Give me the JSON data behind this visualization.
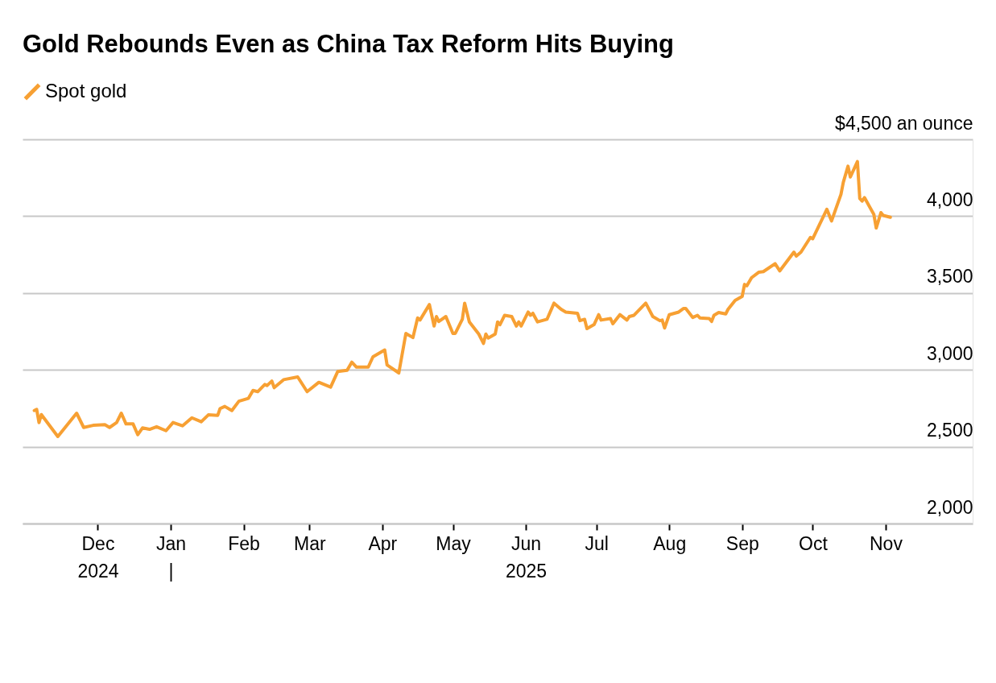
{
  "chart_data": {
    "type": "line",
    "title": "Gold Rebounds Even as China Tax Reform Hits Buying",
    "legend": "top left",
    "grid": "y",
    "marker": "none",
    "line_style": "solid",
    "xlim": [
      "2024-10-30",
      "2025-12-08"
    ],
    "xticks": [
      {
        "value": "2024-12-01",
        "label": "Dec\n2024"
      },
      {
        "value": "2025-01-01",
        "label": "Jan\n|"
      },
      {
        "value": "2025-02-01",
        "label": "Feb"
      },
      {
        "value": "2025-03-01",
        "label": "Mar"
      },
      {
        "value": "2025-04-01",
        "label": "Apr"
      },
      {
        "value": "2025-05-01",
        "label": "May"
      },
      {
        "value": "2025-06-01",
        "label": "Jun\n2025"
      },
      {
        "value": "2025-07-01",
        "label": "Jul"
      },
      {
        "value": "2025-08-01",
        "label": "Aug"
      },
      {
        "value": "2025-09-01",
        "label": "Sep"
      },
      {
        "value": "2025-10-01",
        "label": "Oct"
      },
      {
        "value": "2025-11-01",
        "label": "Nov"
      }
    ],
    "ylim": [
      2000,
      4500
    ],
    "yticks": [
      {
        "value": 2000,
        "label": "2,000"
      },
      {
        "value": 2500,
        "label": "2,500"
      },
      {
        "value": 3000,
        "label": "3,000"
      },
      {
        "value": 3500,
        "label": "3,500"
      },
      {
        "value": 4000,
        "label": "4,000"
      },
      {
        "value": 4500,
        "label": "$4,500 an ounce"
      }
    ],
    "series": [
      {
        "name": "Spot gold",
        "color": "#f7a033",
        "x": [
          "2024-11-04",
          "2024-11-05",
          "2024-11-06",
          "2024-11-07",
          "2024-11-14",
          "2024-11-22",
          "2024-11-25",
          "2024-11-29",
          "2024-12-04",
          "2024-12-06",
          "2024-12-09",
          "2024-12-11",
          "2024-12-13",
          "2024-12-16",
          "2024-12-18",
          "2024-12-20",
          "2024-12-23",
          "2024-12-26",
          "2024-12-30",
          "2025-01-02",
          "2025-01-06",
          "2025-01-10",
          "2025-01-14",
          "2025-01-17",
          "2025-01-21",
          "2025-01-22",
          "2025-01-24",
          "2025-01-27",
          "2025-01-30",
          "2025-02-03",
          "2025-02-05",
          "2025-02-07",
          "2025-02-10",
          "2025-02-11",
          "2025-02-13",
          "2025-02-14",
          "2025-02-18",
          "2025-02-24",
          "2025-02-28",
          "2025-03-05",
          "2025-03-10",
          "2025-03-13",
          "2025-03-17",
          "2025-03-19",
          "2025-03-21",
          "2025-03-26",
          "2025-03-28",
          "2025-04-02",
          "2025-04-03",
          "2025-04-08",
          "2025-04-11",
          "2025-04-14",
          "2025-04-16",
          "2025-04-17",
          "2025-04-21",
          "2025-04-23",
          "2025-04-24",
          "2025-04-25",
          "2025-04-28",
          "2025-05-01",
          "2025-05-02",
          "2025-05-05",
          "2025-05-06",
          "2025-05-08",
          "2025-05-12",
          "2025-05-14",
          "2025-05-15",
          "2025-05-16",
          "2025-05-19",
          "2025-05-20",
          "2025-05-21",
          "2025-05-23",
          "2025-05-26",
          "2025-05-28",
          "2025-05-29",
          "2025-05-30",
          "2025-06-02",
          "2025-06-03",
          "2025-06-04",
          "2025-06-06",
          "2025-06-10",
          "2025-06-13",
          "2025-06-16",
          "2025-06-18",
          "2025-06-23",
          "2025-06-24",
          "2025-06-26",
          "2025-06-27",
          "2025-06-30",
          "2025-07-02",
          "2025-07-03",
          "2025-07-07",
          "2025-07-08",
          "2025-07-11",
          "2025-07-14",
          "2025-07-15",
          "2025-07-17",
          "2025-07-22",
          "2025-07-25",
          "2025-07-28",
          "2025-07-29",
          "2025-07-30",
          "2025-08-01",
          "2025-08-05",
          "2025-08-07",
          "2025-08-08",
          "2025-08-11",
          "2025-08-13",
          "2025-08-14",
          "2025-08-18",
          "2025-08-19",
          "2025-08-20",
          "2025-08-22",
          "2025-08-25",
          "2025-08-26",
          "2025-08-29",
          "2025-09-01",
          "2025-09-02",
          "2025-09-03",
          "2025-09-05",
          "2025-09-08",
          "2025-09-10",
          "2025-09-15",
          "2025-09-17",
          "2025-09-23",
          "2025-09-24",
          "2025-09-26",
          "2025-09-30",
          "2025-10-01",
          "2025-10-07",
          "2025-10-09",
          "2025-10-13",
          "2025-10-14",
          "2025-10-16",
          "2025-10-17",
          "2025-10-20",
          "2025-10-21",
          "2025-10-22",
          "2025-10-23",
          "2025-10-27",
          "2025-10-28",
          "2025-10-30",
          "2025-10-31",
          "2025-11-03"
        ],
        "values": [
          2735,
          2743,
          2657,
          2709,
          2566,
          2718,
          2625,
          2639,
          2643,
          2625,
          2657,
          2718,
          2648,
          2648,
          2578,
          2622,
          2613,
          2630,
          2604,
          2657,
          2636,
          2688,
          2662,
          2707,
          2704,
          2748,
          2762,
          2735,
          2796,
          2814,
          2866,
          2858,
          2905,
          2898,
          2927,
          2884,
          2936,
          2954,
          2858,
          2919,
          2888,
          2989,
          2997,
          3050,
          3018,
          3018,
          3085,
          3129,
          3032,
          2980,
          3237,
          3210,
          3338,
          3324,
          3425,
          3285,
          3347,
          3315,
          3347,
          3237,
          3237,
          3329,
          3434,
          3312,
          3233,
          3172,
          3233,
          3207,
          3233,
          3312,
          3294,
          3355,
          3347,
          3285,
          3312,
          3285,
          3376,
          3355,
          3368,
          3312,
          3329,
          3434,
          3394,
          3376,
          3368,
          3320,
          3329,
          3268,
          3294,
          3359,
          3324,
          3334,
          3300,
          3359,
          3324,
          3347,
          3355,
          3434,
          3347,
          3320,
          3324,
          3272,
          3359,
          3376,
          3399,
          3399,
          3341,
          3355,
          3338,
          3334,
          3315,
          3355,
          3373,
          3364,
          3394,
          3452,
          3478,
          3556,
          3547,
          3600,
          3635,
          3639,
          3691,
          3644,
          3766,
          3740,
          3766,
          3862,
          3853,
          4045,
          3969,
          4142,
          4220,
          4325,
          4255,
          4355,
          4115,
          4098,
          4121,
          4011,
          3923,
          4023,
          4005,
          3993
        ]
      }
    ]
  }
}
